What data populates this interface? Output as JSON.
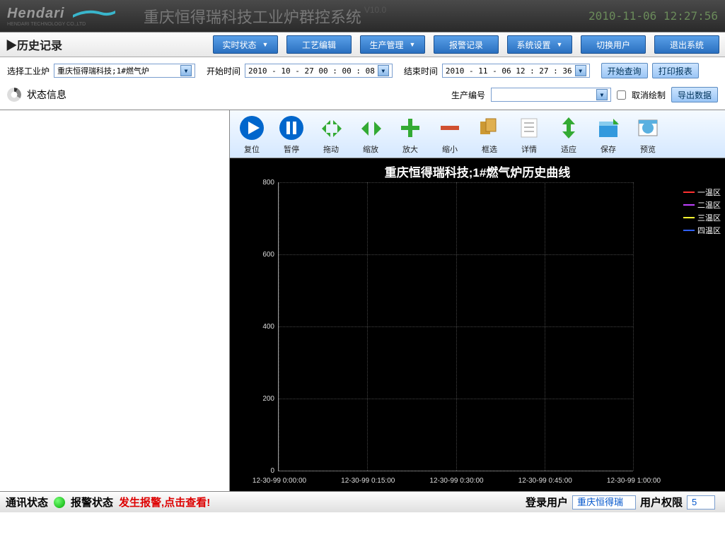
{
  "header": {
    "brand": "Hendari",
    "brand_sub": "HENDARI TECHNOLOGY CO.,LTD",
    "swoosh_color": "#39b5cb",
    "app_title": "重庆恒得瑞科技工业炉群控系统",
    "version": "V10.0",
    "datetime": "2010-11-06 12:27:56"
  },
  "nav": {
    "page_title": "▶历史记录",
    "buttons": [
      {
        "label": "实时状态",
        "dropdown": true
      },
      {
        "label": "工艺编辑",
        "dropdown": false
      },
      {
        "label": "生产管理",
        "dropdown": true
      },
      {
        "label": "报警记录",
        "dropdown": false
      },
      {
        "label": "系统设置",
        "dropdown": true
      },
      {
        "label": "切换用户",
        "dropdown": false
      },
      {
        "label": "退出系统",
        "dropdown": false
      }
    ]
  },
  "filters": {
    "furnace_label": "选择工业炉",
    "furnace_value": "重庆恒得瑞科技;1#燃气炉",
    "start_label": "开始时间",
    "start_value": "2010 - 10 - 27   00 : 00 : 08",
    "end_label": "结束时间",
    "end_value": "2010 - 11 - 06   12 : 27 : 36",
    "query_btn": "开始查询",
    "print_btn": "打印报表"
  },
  "status_row": {
    "status_label": "状态信息",
    "prod_label": "生产编号",
    "prod_value": "",
    "cancel_draw": "取消绘制",
    "cancel_checked": false,
    "export_btn": "导出数据"
  },
  "toolbar": [
    {
      "icon": "play",
      "label": "复位",
      "color": "#0066cc"
    },
    {
      "icon": "pause",
      "label": "暂停",
      "color": "#0066cc"
    },
    {
      "icon": "drag",
      "label": "拖动",
      "color": "#33aa33"
    },
    {
      "icon": "zoom",
      "label": "缩放",
      "color": "#33aa33"
    },
    {
      "icon": "zoom-in",
      "label": "放大",
      "color": "#33aa33"
    },
    {
      "icon": "zoom-out",
      "label": "缩小",
      "color": "#d05030"
    },
    {
      "icon": "select",
      "label": "框选",
      "color": "#cc9933"
    },
    {
      "icon": "detail",
      "label": "详情",
      "color": "#bbbbbb"
    },
    {
      "icon": "fit",
      "label": "适应",
      "color": "#33aa33"
    },
    {
      "icon": "save",
      "label": "保存",
      "color": "#3399dd"
    },
    {
      "icon": "preview",
      "label": "预览",
      "color": "#3399dd"
    }
  ],
  "chart": {
    "title": "重庆恒得瑞科技;1#燃气炉历史曲线",
    "background_color": "#000000",
    "text_color": "#ffffff",
    "grid_color": "#444444",
    "axis_color": "#999999",
    "ylim": [
      0,
      800
    ],
    "yticks": [
      0,
      200,
      400,
      600,
      800
    ],
    "xlabels": [
      "12-30-99 0:00:00",
      "12-30-99 0:15:00",
      "12-30-99 0:30:00",
      "12-30-99 0:45:00",
      "12-30-99 1:00:00"
    ],
    "legend": [
      {
        "name": "一温区",
        "color": "#ff3030"
      },
      {
        "name": "二温区",
        "color": "#c040ff"
      },
      {
        "name": "三温区",
        "color": "#ffff30"
      },
      {
        "name": "四温区",
        "color": "#3060ff"
      }
    ],
    "series_data": []
  },
  "footer": {
    "comm_label": "通讯状态",
    "comm_ok": true,
    "alarm_label": "报警状态",
    "alarm_text": "发生报警,点击查看!",
    "user_label": "登录用户",
    "user_value": "重庆恒得瑞",
    "perm_label": "用户权限",
    "perm_value": "5"
  }
}
